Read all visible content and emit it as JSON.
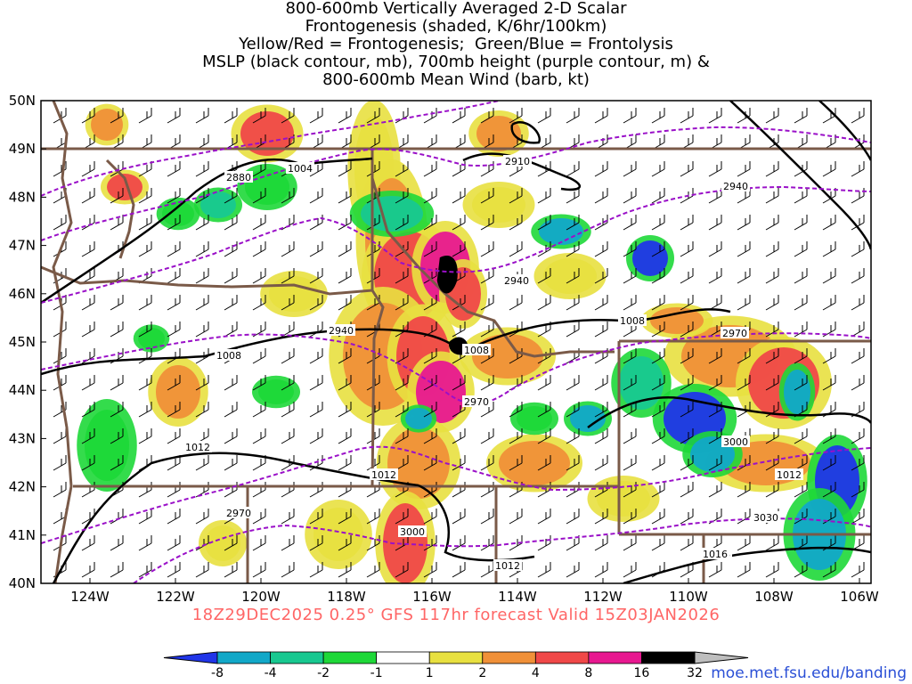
{
  "title": [
    "800-600mb Vertically Averaged 2-D Scalar",
    "Frontogenesis (shaded, K/6hr/100km)",
    "Yellow/Red = Frontogenesis;  Green/Blue = Frontolysis",
    "MSLP (black contour, mb), 700mb height (purple contour, m) &",
    "800-600mb Mean Wind (barb, kt)"
  ],
  "lat_labels": [
    "50N",
    "49N",
    "48N",
    "47N",
    "46N",
    "45N",
    "44N",
    "43N",
    "42N",
    "41N",
    "40N"
  ],
  "lon_labels": [
    "124W",
    "122W",
    "120W",
    "118W",
    "116W",
    "114W",
    "112W",
    "110W",
    "108W",
    "106W"
  ],
  "mslp_labels": [
    "1004",
    "1008",
    "1008",
    "1008",
    "1008",
    "1012",
    "1012",
    "1012",
    "1012",
    "1016"
  ],
  "height_labels": [
    "2880",
    "2910",
    "2940",
    "2940",
    "2940",
    "2970",
    "2970",
    "2970",
    "3000",
    "3000",
    "3030"
  ],
  "valid_line": "18Z29DEC2025 0.25° GFS 117hr forecast Valid 15Z03JAN2026",
  "colorbar": {
    "ticks": [
      "-8",
      "-4",
      "-2",
      "-1",
      "1",
      "2",
      "4",
      "8",
      "16",
      "32"
    ],
    "colors": [
      "#2035e8",
      "#12a8c8",
      "#18c890",
      "#1ed838",
      "#ffffff",
      "#e8e040",
      "#f09038",
      "#f04848",
      "#e81890",
      "#000000",
      "#bebebe"
    ]
  },
  "colors": {
    "state_borders": "#7a5a48",
    "mslp": "#000000",
    "height": "#9a10c8",
    "valid_text": "#ff6666",
    "url_text": "#2a4fd6"
  },
  "source_url": "moe.met.fsu.edu/banding"
}
